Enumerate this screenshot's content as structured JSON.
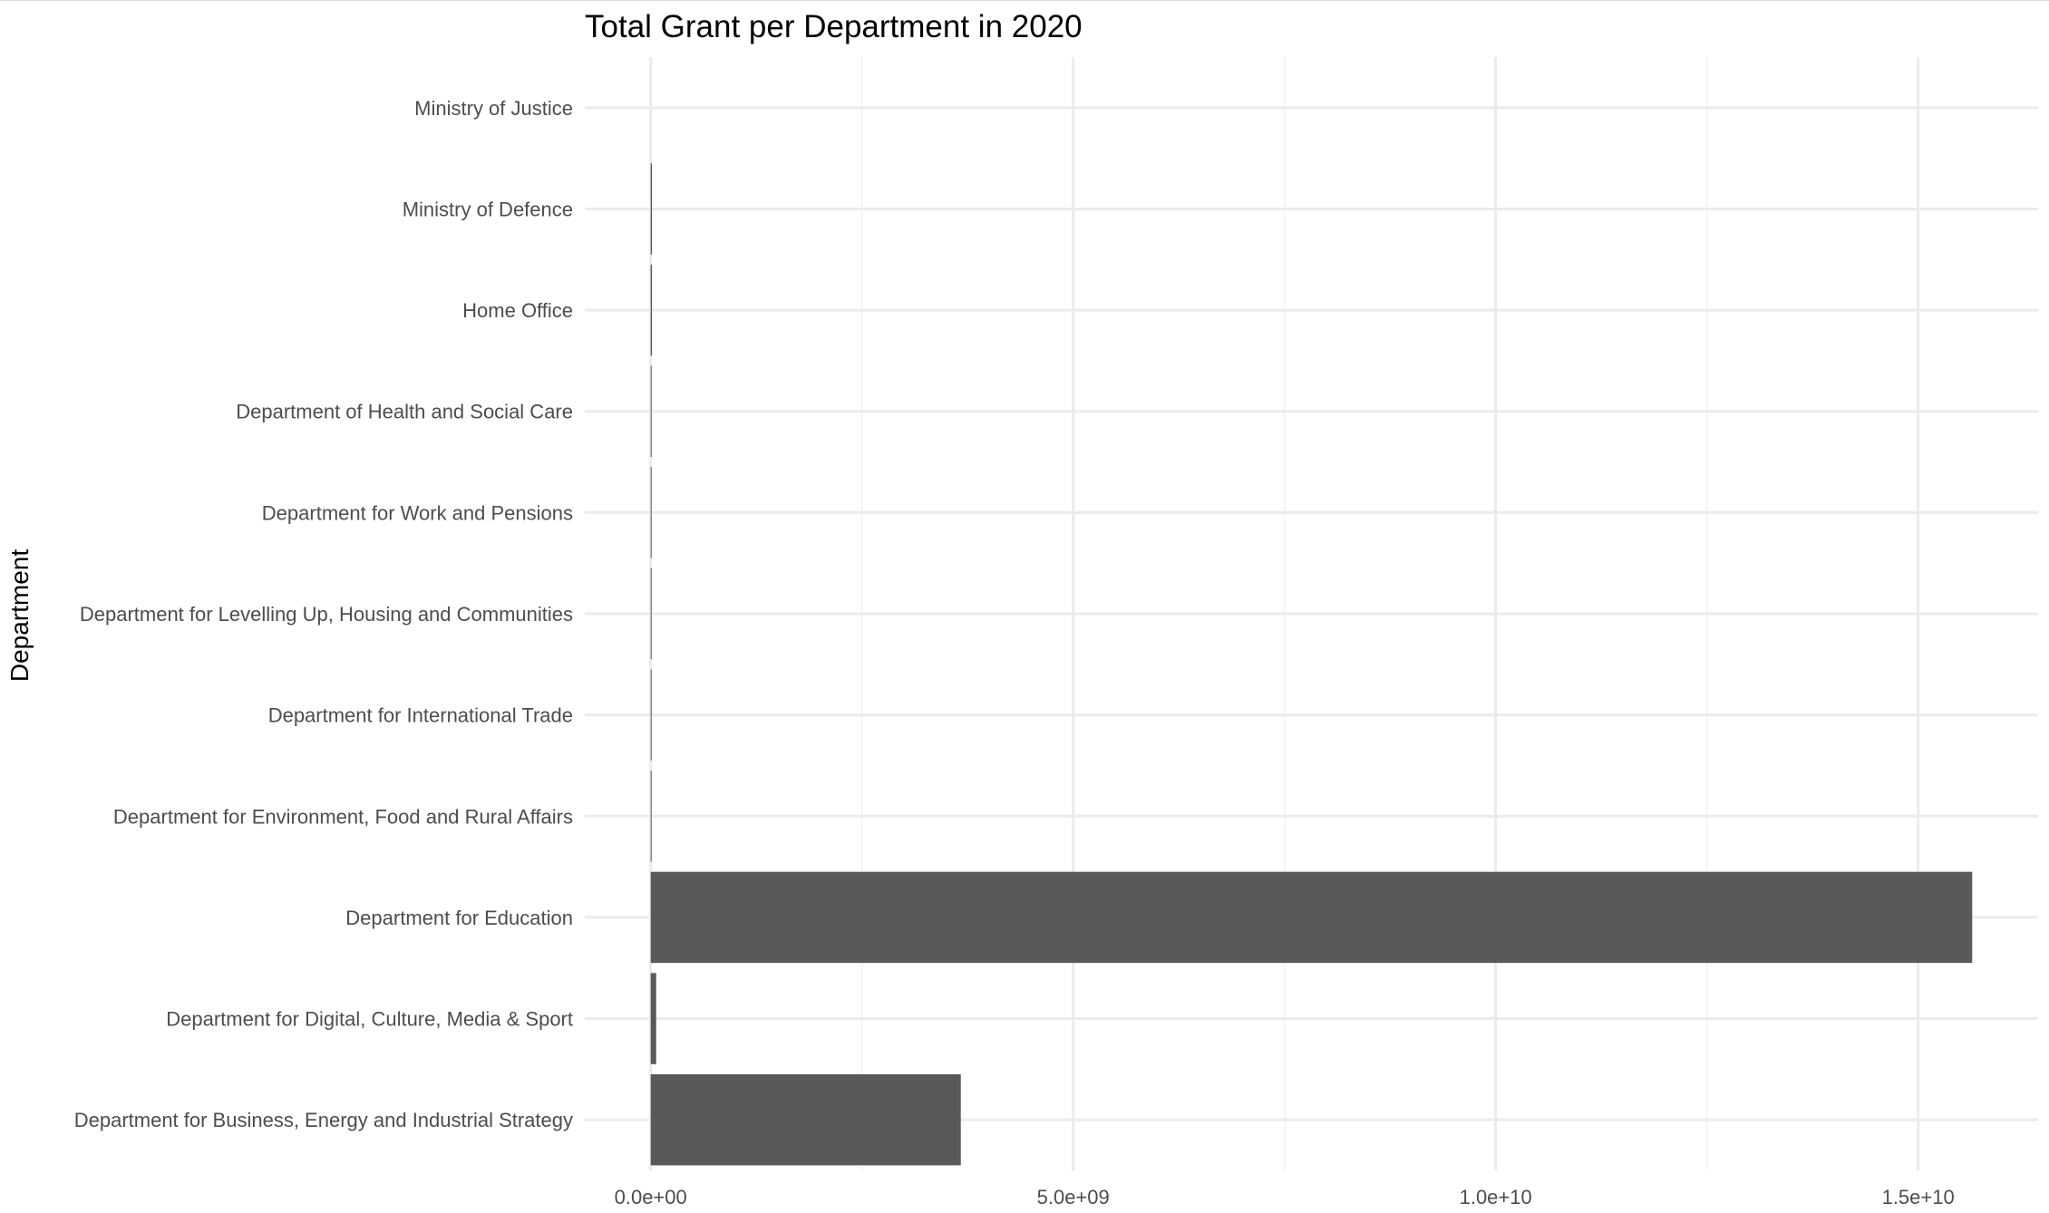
{
  "chart_data": {
    "type": "bar",
    "orientation": "horizontal",
    "title": "Total Grant per Department in 2020",
    "xlabel": "",
    "ylabel": "Department",
    "categories": [
      "Department for Business, Energy and Industrial Strategy",
      "Department for Digital, Culture, Media & Sport",
      "Department for Education",
      "Department for Environment, Food and Rural Affairs",
      "Department for International Trade",
      "Department for Levelling Up, Housing and Communities",
      "Department for Work and Pensions",
      "Department of Health and Social Care",
      "Home Office",
      "Ministry of Defence",
      "Ministry of Justice"
    ],
    "values": [
      3670000000,
      65000000,
      15640000000,
      10000000,
      1000000,
      2000000,
      5000000,
      1000000,
      15000000,
      15000000,
      0
    ],
    "xlim": [
      -780000000,
      16420000000
    ],
    "xticks": [
      0,
      5000000000,
      10000000000,
      15000000000
    ],
    "xtick_labels": [
      "0.0e+00",
      "5.0e+09",
      "1.0e+10",
      "1.5e+10"
    ],
    "bar_color": "#595959",
    "grid": true,
    "legend": "none"
  }
}
